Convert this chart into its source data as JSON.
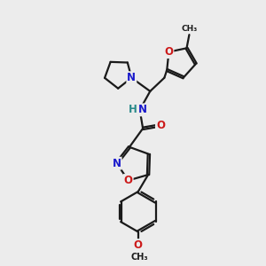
{
  "bg_color": "#ececec",
  "bond_color": "#1a1a1a",
  "bond_width": 1.6,
  "atom_colors": {
    "N": "#1a1acc",
    "O": "#cc1a1a",
    "H": "#2a8a8a",
    "C": "#1a1a1a"
  },
  "font_size": 8.5,
  "fig_size": [
    3.0,
    3.0
  ],
  "dpi": 100
}
